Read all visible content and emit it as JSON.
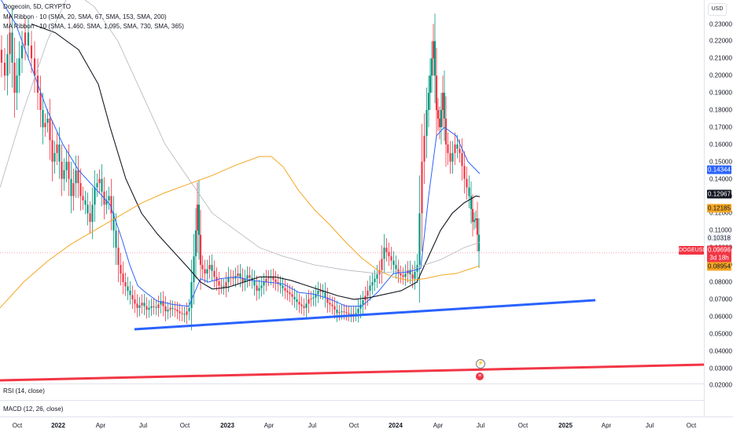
{
  "legend": {
    "title": "Dogecoin, 5D, CRYPTO",
    "ribbon1": "MA Ribbon · 10 (SMA, 20, SMA, 67, SMA, 153, SMA, 200)",
    "ribbon2": "MA Ribbon · 10 (SMA, 1,460, SMA, 1,095, SMA, 730, SMA, 365)"
  },
  "currency_button": "USD",
  "price_axis_ticks": [
    "0.23000",
    "0.22000",
    "0.21000",
    "0.20000",
    "0.19000",
    "0.18000",
    "0.17000",
    "0.16000",
    "0.15000",
    "0.14000",
    "0.13000",
    "0.12000",
    "0.11000",
    "0.10000",
    "0.09000",
    "0.08000",
    "0.07000",
    "0.06000",
    "0.05000",
    "0.04000",
    "0.03000",
    "0.02000"
  ],
  "price_badges": {
    "blue": "0.14344",
    "black": "0.12967",
    "orange1": "0.12185",
    "gray": "0.10318",
    "current": "0.09696",
    "countdown": "3d 18h",
    "orange2": "0.08954"
  },
  "symbol_badge": "DOGEUSD",
  "indicators": {
    "rsi": "RSI (14, close)",
    "macd": "MACD (12, 26, close)"
  },
  "time_axis": [
    {
      "label": "Oct",
      "bold": false
    },
    {
      "label": "2022",
      "bold": true
    },
    {
      "label": "Apr",
      "bold": false
    },
    {
      "label": "Jul",
      "bold": false
    },
    {
      "label": "Oct",
      "bold": false
    },
    {
      "label": "2023",
      "bold": true
    },
    {
      "label": "Apr",
      "bold": false
    },
    {
      "label": "Jul",
      "bold": false
    },
    {
      "label": "Oct",
      "bold": false
    },
    {
      "label": "2024",
      "bold": true
    },
    {
      "label": "Apr",
      "bold": false
    },
    {
      "label": "Jul",
      "bold": false
    },
    {
      "label": "Oct",
      "bold": false
    },
    {
      "label": "2025",
      "bold": true
    },
    {
      "label": "Apr",
      "bold": false
    },
    {
      "label": "Jul",
      "bold": false
    },
    {
      "label": "Oct",
      "bold": false
    }
  ],
  "colors": {
    "up": "#089981",
    "down": "#f23645",
    "trendline_blue": "#2962ff",
    "trendline_red": "#f23645",
    "ma_blue": "#2962ff",
    "ma_black": "#131722",
    "ma_orange": "#f5a623",
    "ma_gray": "#b2b5be"
  }
}
